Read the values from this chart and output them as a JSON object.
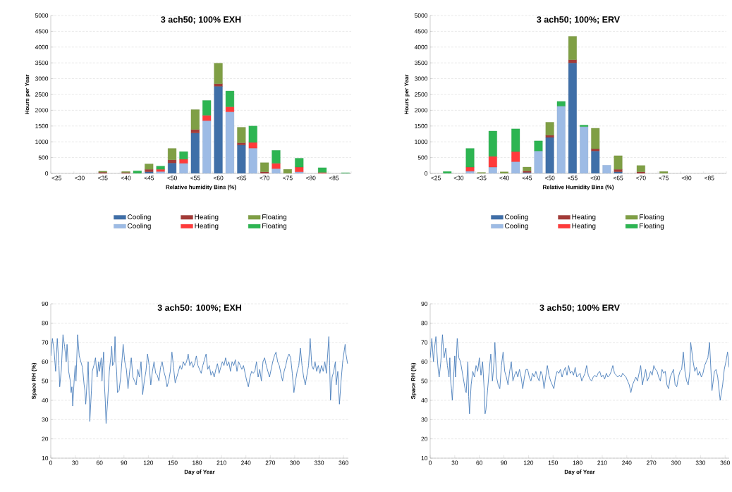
{
  "chart_data": [
    {
      "type": "bar",
      "stacked": true,
      "title": "3 ach50; 100% EXH",
      "xlabel": "Relative humidity Bins (%)",
      "ylabel": "Hours per Year",
      "categories": [
        "<25",
        null,
        "<30",
        null,
        "<35",
        null,
        "<40",
        null,
        "<45",
        null,
        "<50",
        null,
        "<55",
        null,
        "<60",
        null,
        "<65",
        null,
        "<70",
        null,
        "<75",
        null,
        "<80",
        null,
        "<85",
        null
      ],
      "ylim": [
        0,
        5000
      ],
      "yticks": [
        0,
        500,
        1000,
        1500,
        2000,
        2500,
        3000,
        3500,
        4000,
        4500,
        5000
      ],
      "grid": "y",
      "legend": "bottom",
      "series": [
        {
          "name": "Cooling",
          "color": "#3f6fa8",
          "values": [
            0,
            0,
            0,
            0,
            0,
            0,
            0,
            0,
            50,
            0,
            330,
            0,
            1280,
            0,
            2760,
            0,
            900,
            0,
            0,
            0,
            0,
            0,
            0,
            0,
            0,
            0
          ]
        },
        {
          "name": "Heating",
          "color": "#a33b38",
          "values": [
            0,
            0,
            0,
            0,
            40,
            0,
            30,
            0,
            80,
            0,
            100,
            0,
            110,
            0,
            80,
            0,
            70,
            0,
            50,
            0,
            0,
            0,
            0,
            0,
            0,
            0
          ]
        },
        {
          "name": "Floating",
          "color": "#7f9f45",
          "values": [
            0,
            0,
            0,
            0,
            30,
            0,
            30,
            0,
            170,
            0,
            360,
            0,
            630,
            0,
            650,
            0,
            490,
            0,
            290,
            0,
            130,
            0,
            0,
            0,
            0,
            0
          ]
        },
        {
          "name": "Cooling",
          "color": "#9dbbe5",
          "values": [
            0,
            0,
            0,
            0,
            0,
            0,
            0,
            0,
            0,
            60,
            0,
            320,
            0,
            1670,
            0,
            1950,
            0,
            800,
            0,
            150,
            0,
            50,
            0,
            0,
            0,
            0
          ]
        },
        {
          "name": "Heating",
          "color": "#ff3b3b",
          "values": [
            0,
            0,
            0,
            0,
            0,
            0,
            0,
            0,
            0,
            70,
            0,
            130,
            0,
            170,
            0,
            160,
            0,
            180,
            0,
            170,
            0,
            150,
            0,
            30,
            0,
            0
          ]
        },
        {
          "name": "Floating",
          "color": "#2db552",
          "values": [
            0,
            0,
            0,
            0,
            0,
            0,
            0,
            80,
            0,
            100,
            0,
            240,
            0,
            470,
            0,
            500,
            0,
            520,
            0,
            410,
            0,
            280,
            0,
            150,
            0,
            20
          ]
        }
      ]
    },
    {
      "type": "bar",
      "stacked": true,
      "title": "3 ach50; 100%; ERV",
      "xlabel": "Relative Humidity Bins (%)",
      "ylabel": "Hours per Year",
      "categories": [
        "<25",
        null,
        "<30",
        null,
        "<35",
        null,
        "<40",
        null,
        "<45",
        null,
        "<50",
        null,
        "<55",
        null,
        "<60",
        null,
        "<65",
        null,
        "<70",
        null,
        "<75",
        null,
        "<80",
        null,
        "<85",
        null
      ],
      "ylim": [
        0,
        5000
      ],
      "yticks": [
        0,
        500,
        1000,
        1500,
        2000,
        2500,
        3000,
        3500,
        4000,
        4500,
        5000
      ],
      "grid": "y",
      "legend": "bottom",
      "series": [
        {
          "name": "Cooling",
          "color": "#3f6fa8",
          "values": [
            0,
            0,
            0,
            0,
            0,
            0,
            0,
            0,
            30,
            0,
            1140,
            0,
            3500,
            0,
            710,
            0,
            50,
            0,
            0,
            0,
            0,
            0,
            0,
            0,
            0,
            0
          ]
        },
        {
          "name": "Heating",
          "color": "#a33b38",
          "values": [
            0,
            0,
            0,
            0,
            0,
            0,
            0,
            0,
            50,
            0,
            70,
            0,
            100,
            0,
            70,
            0,
            80,
            0,
            50,
            0,
            0,
            0,
            0,
            0,
            0,
            0
          ]
        },
        {
          "name": "Floating",
          "color": "#7f9f45",
          "values": [
            0,
            0,
            0,
            0,
            30,
            0,
            50,
            0,
            120,
            0,
            410,
            0,
            740,
            0,
            650,
            0,
            430,
            0,
            200,
            0,
            60,
            0,
            0,
            0,
            0,
            0
          ]
        },
        {
          "name": "Cooling",
          "color": "#9dbbe5",
          "values": [
            0,
            0,
            0,
            70,
            0,
            200,
            0,
            370,
            0,
            710,
            0,
            2130,
            0,
            1480,
            0,
            260,
            0,
            0,
            0,
            0,
            0,
            0,
            0,
            0,
            0,
            0
          ]
        },
        {
          "name": "Heating",
          "color": "#ff3b3b",
          "values": [
            0,
            0,
            0,
            130,
            0,
            340,
            0,
            320,
            0,
            0,
            0,
            0,
            0,
            0,
            0,
            0,
            0,
            0,
            0,
            0,
            0,
            0,
            0,
            0,
            0,
            0
          ]
        },
        {
          "name": "Floating",
          "color": "#2db552",
          "values": [
            0,
            60,
            0,
            590,
            0,
            800,
            0,
            720,
            0,
            320,
            0,
            150,
            0,
            50,
            0,
            0,
            0,
            0,
            0,
            0,
            0,
            0,
            0,
            0,
            0,
            0
          ]
        }
      ]
    },
    {
      "type": "line",
      "title": "3 ach50: 100%; EXH",
      "xlabel": "Day of Year",
      "ylabel": "Space RH (%)",
      "xlim": [
        0,
        366
      ],
      "ylim": [
        10,
        90
      ],
      "xticks": [
        0,
        30,
        60,
        90,
        120,
        150,
        180,
        210,
        240,
        270,
        300,
        330,
        360
      ],
      "yticks": [
        10,
        20,
        30,
        40,
        50,
        60,
        70,
        80,
        90
      ],
      "grid": "y",
      "marker": "none",
      "line_style": "solid",
      "color": "#4a7ebb",
      "x": [
        0,
        2,
        4,
        6,
        8,
        10,
        11,
        13,
        15,
        17,
        19,
        20,
        22,
        24,
        25,
        26,
        27,
        29,
        30,
        31,
        33,
        35,
        37,
        39,
        41,
        42,
        43,
        45,
        46,
        47,
        48,
        50,
        51,
        53,
        55,
        57,
        59,
        60,
        62,
        63,
        64,
        65,
        66,
        67,
        68,
        70,
        72,
        74,
        75,
        76,
        78,
        79,
        80,
        81,
        82,
        84,
        86,
        88,
        89,
        91,
        93,
        95,
        97,
        99,
        101,
        103,
        105,
        107,
        109,
        111,
        113,
        115,
        117,
        119,
        121,
        123,
        125,
        127,
        129,
        131,
        133,
        135,
        137,
        139,
        141,
        143,
        145,
        147,
        149,
        151,
        153,
        155,
        157,
        159,
        161,
        163,
        165,
        167,
        169,
        171,
        173,
        175,
        177,
        179,
        181,
        183,
        185,
        187,
        189,
        191,
        193,
        195,
        197,
        199,
        201,
        203,
        205,
        207,
        209,
        211,
        213,
        215,
        217,
        219,
        221,
        223,
        225,
        227,
        229,
        231,
        233,
        235,
        237,
        239,
        241,
        243,
        245,
        247,
        249,
        251,
        253,
        255,
        257,
        259,
        261,
        263,
        265,
        267,
        269,
        271,
        273,
        275,
        277,
        279,
        281,
        283,
        285,
        287,
        289,
        291,
        293,
        295,
        297,
        299,
        301,
        303,
        305,
        307,
        309,
        311,
        313,
        315,
        317,
        319,
        321,
        323,
        325,
        327,
        329,
        331,
        333,
        335,
        337,
        339,
        342,
        343,
        344,
        346,
        348,
        350,
        351,
        353,
        355,
        357,
        359,
        362,
        363,
        365
      ],
      "values": [
        63,
        72,
        66,
        55,
        72,
        58,
        47,
        56,
        74,
        68,
        60,
        69,
        55,
        50,
        44,
        47,
        37,
        52,
        58,
        50,
        74,
        63,
        60,
        57,
        48,
        45,
        38,
        52,
        60,
        45,
        29,
        45,
        55,
        58,
        62,
        52,
        60,
        55,
        62,
        50,
        58,
        65,
        48,
        40,
        28,
        40,
        55,
        63,
        68,
        58,
        60,
        73,
        60,
        55,
        44,
        45,
        52,
        63,
        69,
        60,
        56,
        46,
        55,
        62,
        52,
        50,
        48,
        56,
        52,
        60,
        43,
        50,
        55,
        64,
        58,
        48,
        55,
        60,
        54,
        53,
        50,
        57,
        60,
        55,
        52,
        47,
        50,
        55,
        65,
        57,
        49,
        52,
        55,
        58,
        56,
        60,
        58,
        60,
        64,
        58,
        60,
        57,
        59,
        63,
        58,
        56,
        54,
        58,
        61,
        64,
        56,
        58,
        53,
        55,
        52,
        56,
        59,
        54,
        57,
        60,
        58,
        62,
        58,
        60,
        55,
        60,
        58,
        61,
        55,
        60,
        58,
        56,
        58,
        54,
        50,
        47,
        52,
        55,
        54,
        55,
        60,
        52,
        56,
        50,
        60,
        62,
        58,
        55,
        52,
        56,
        60,
        63,
        65,
        60,
        58,
        54,
        50,
        55,
        58,
        62,
        64,
        62,
        54,
        44,
        50,
        55,
        58,
        67,
        58,
        52,
        48,
        53,
        58,
        72,
        58,
        56,
        60,
        55,
        58,
        54,
        58,
        55,
        60,
        54,
        73,
        58,
        40,
        52,
        55,
        60,
        48,
        55,
        38,
        50,
        60,
        69,
        64,
        59
      ]
    },
    {
      "type": "line",
      "title": "3 ach50; 100% ERV",
      "xlabel": "Day of Year",
      "ylabel": "Space RH (%)",
      "xlim": [
        0,
        365
      ],
      "ylim": [
        10,
        90
      ],
      "xticks": [
        0,
        30,
        60,
        90,
        120,
        150,
        180,
        210,
        240,
        270,
        300,
        330,
        360
      ],
      "yticks": [
        10,
        20,
        30,
        40,
        50,
        60,
        70,
        80,
        90
      ],
      "grid": "y",
      "marker": "none",
      "line_style": "solid",
      "color": "#4a7ebb",
      "x": [
        0,
        2,
        4,
        5,
        7,
        9,
        10,
        11,
        13,
        15,
        17,
        19,
        21,
        23,
        24,
        25,
        26,
        27,
        29,
        30,
        31,
        33,
        35,
        37,
        39,
        41,
        43,
        44,
        45,
        46,
        47,
        48,
        50,
        52,
        54,
        56,
        58,
        60,
        62,
        64,
        66,
        67,
        68,
        70,
        72,
        74,
        76,
        78,
        79,
        81,
        83,
        85,
        87,
        89,
        91,
        93,
        95,
        97,
        99,
        101,
        103,
        105,
        107,
        109,
        111,
        113,
        115,
        117,
        119,
        121,
        123,
        125,
        127,
        129,
        131,
        133,
        135,
        137,
        139,
        141,
        143,
        145,
        147,
        149,
        151,
        153,
        155,
        157,
        159,
        161,
        163,
        165,
        167,
        169,
        171,
        173,
        175,
        177,
        179,
        181,
        183,
        185,
        187,
        189,
        191,
        193,
        195,
        197,
        199,
        201,
        203,
        205,
        207,
        209,
        211,
        213,
        215,
        217,
        219,
        221,
        223,
        225,
        227,
        229,
        231,
        233,
        235,
        237,
        239,
        241,
        243,
        245,
        247,
        249,
        251,
        253,
        255,
        257,
        259,
        261,
        263,
        265,
        267,
        269,
        271,
        273,
        275,
        277,
        279,
        281,
        283,
        285,
        287,
        289,
        291,
        293,
        295,
        297,
        299,
        301,
        303,
        305,
        307,
        309,
        311,
        313,
        315,
        317,
        318,
        321,
        323,
        325,
        327,
        329,
        331,
        333,
        335,
        337,
        339,
        341,
        344,
        347,
        349,
        351,
        354,
        357,
        359,
        361,
        363,
        365
      ],
      "values": [
        62,
        72,
        60,
        66,
        73,
        60,
        55,
        52,
        60,
        74,
        62,
        67,
        58,
        52,
        62,
        50,
        46,
        40,
        55,
        63,
        52,
        72,
        62,
        60,
        55,
        50,
        45,
        44,
        52,
        60,
        42,
        33,
        48,
        55,
        52,
        58,
        55,
        62,
        53,
        60,
        45,
        33,
        35,
        45,
        55,
        64,
        50,
        60,
        70,
        52,
        48,
        46,
        58,
        65,
        55,
        52,
        48,
        55,
        60,
        50,
        53,
        55,
        52,
        56,
        52,
        46,
        52,
        56,
        56,
        52,
        50,
        54,
        52,
        55,
        52,
        50,
        55,
        53,
        46,
        52,
        58,
        53,
        50,
        48,
        46,
        52,
        55,
        54,
        56,
        52,
        55,
        57,
        53,
        58,
        54,
        55,
        53,
        57,
        52,
        53,
        54,
        50,
        52,
        54,
        58,
        53,
        51,
        50,
        52,
        53,
        52,
        54,
        55,
        52,
        53,
        51,
        54,
        52,
        53,
        55,
        58,
        54,
        53,
        52,
        53,
        52,
        54,
        53,
        52,
        50,
        48,
        44,
        48,
        50,
        52,
        50,
        54,
        58,
        48,
        52,
        56,
        50,
        52,
        55,
        53,
        58,
        56,
        55,
        52,
        50,
        56,
        54,
        55,
        48,
        46,
        52,
        54,
        56,
        48,
        47,
        52,
        55,
        56,
        65,
        55,
        50,
        48,
        55,
        70,
        60,
        55,
        57,
        53,
        55,
        52,
        54,
        58,
        60,
        62,
        70,
        45,
        55,
        56,
        52,
        40,
        48,
        56,
        60,
        65,
        57
      ]
    }
  ]
}
